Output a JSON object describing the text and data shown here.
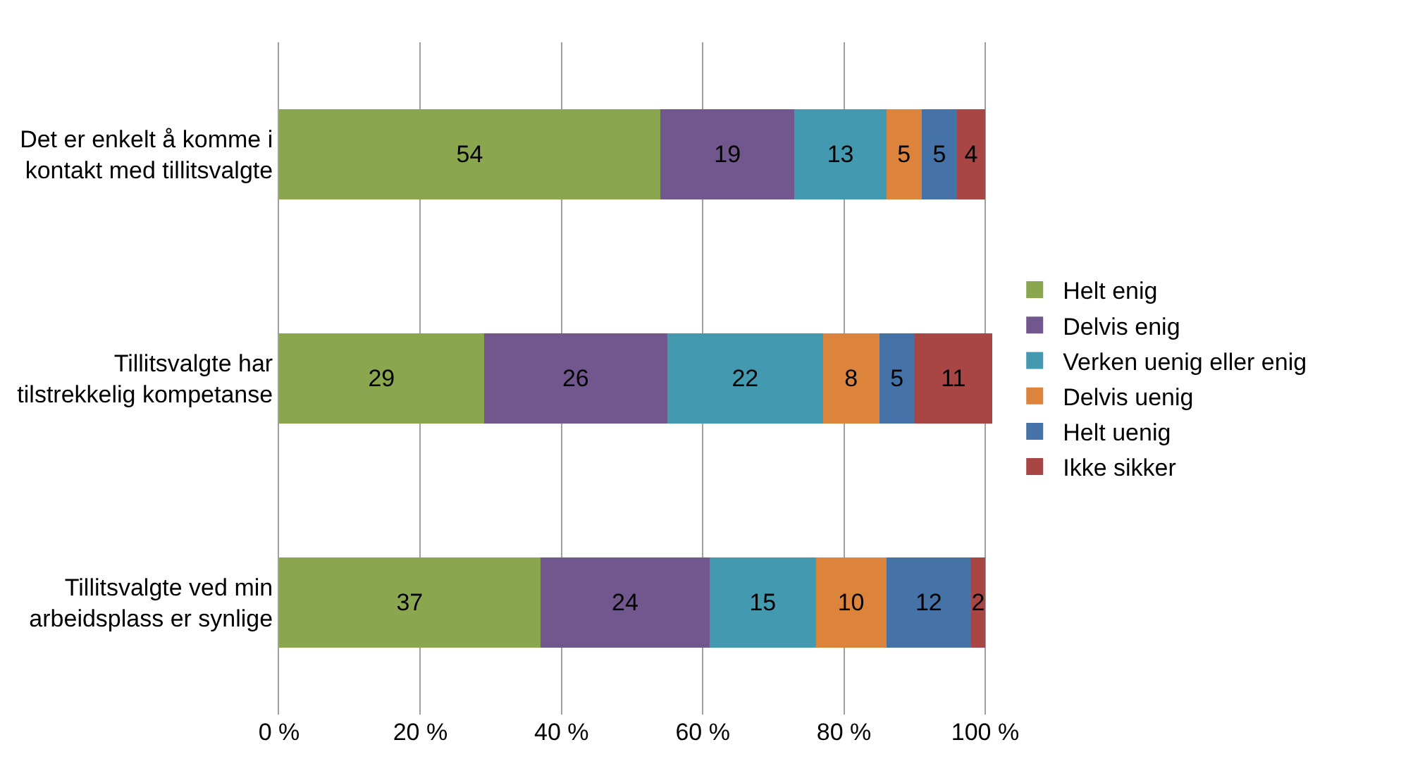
{
  "chart_data": {
    "type": "bar",
    "orientation": "horizontal",
    "stacked": true,
    "categories": [
      "Det er enkelt å komme i kontakt med tillitsvalgte",
      "Tillitsvalgte har tilstrekkelig kompetanse",
      "Tillitsvalgte ved min arbeidsplass er synlige"
    ],
    "series": [
      {
        "name": "Helt enig",
        "color": "#8aa64e",
        "values": [
          54,
          29,
          37
        ]
      },
      {
        "name": "Delvis enig",
        "color": "#72578f",
        "values": [
          19,
          26,
          24
        ]
      },
      {
        "name": "Verken uenig eller enig",
        "color": "#4299b0",
        "values": [
          13,
          22,
          15
        ]
      },
      {
        "name": "Delvis uenig",
        "color": "#dd843c",
        "values": [
          5,
          8,
          10
        ]
      },
      {
        "name": "Helt uenig",
        "color": "#4572a7",
        "values": [
          5,
          5,
          12
        ]
      },
      {
        "name": "Ikke sikker",
        "color": "#a84545",
        "values": [
          4,
          11,
          2
        ]
      }
    ],
    "xlim": [
      0,
      101
    ],
    "xticks": [
      {
        "value": 0,
        "label": "0 %"
      },
      {
        "value": 20,
        "label": "20 %"
      },
      {
        "value": 40,
        "label": "40 %"
      },
      {
        "value": 60,
        "label": "60 %"
      },
      {
        "value": 80,
        "label": "80 %"
      },
      {
        "value": 100,
        "label": "100 %"
      }
    ],
    "grid": "x",
    "legend": "right",
    "data_labels": true
  }
}
